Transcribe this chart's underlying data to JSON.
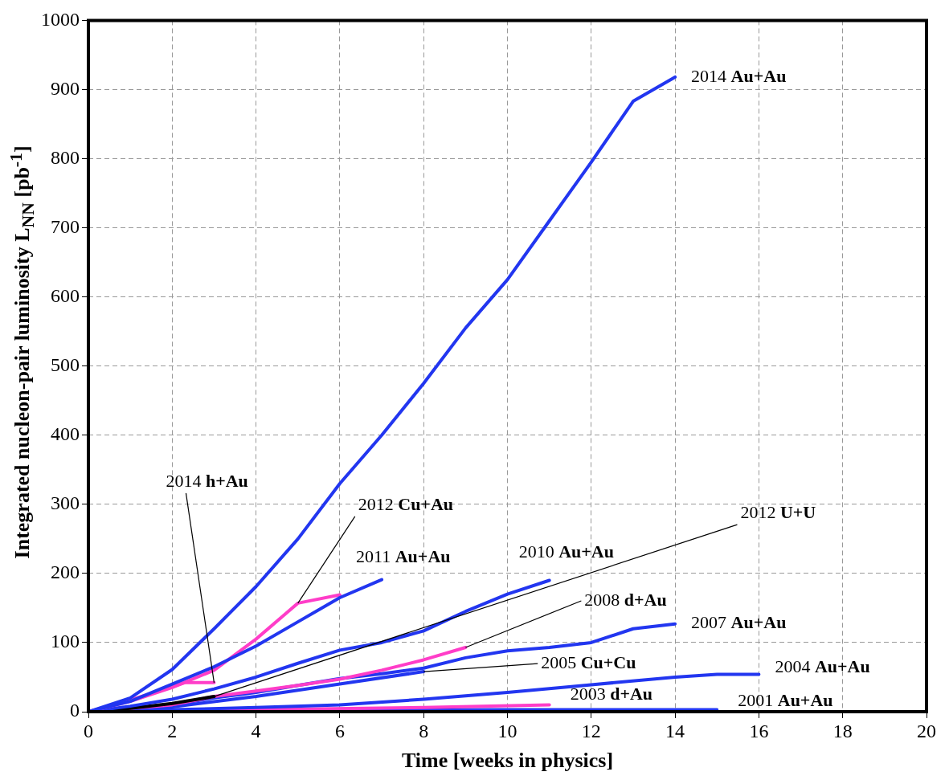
{
  "chart_data": {
    "type": "line",
    "xlabel": "Time [weeks in physics]",
    "ylabel": "Integrated nucleon-pair luminosity L$_{NN}$ [pb$^{-1}$]",
    "xlim": [
      0,
      20
    ],
    "xticks": [
      0,
      2,
      4,
      6,
      8,
      10,
      12,
      14,
      16,
      18,
      20
    ],
    "ylim": [
      0,
      1000
    ],
    "yticks": [
      0,
      100,
      200,
      300,
      400,
      500,
      600,
      700,
      800,
      900,
      1000
    ],
    "grid": true,
    "legend": false,
    "marker": "none",
    "line_style": "solid",
    "series": [
      {
        "color": "#2236f0",
        "x": [
          0,
          1,
          2,
          3,
          4,
          5,
          6,
          7,
          8,
          9,
          10,
          11,
          12,
          13,
          14
        ],
        "values": [
          0,
          20,
          61,
          120,
          181,
          250,
          330,
          400,
          475,
          555,
          625,
          710,
          795,
          883,
          918
        ]
      },
      {
        "color": "#2236f0",
        "x": [
          0,
          1,
          2,
          3,
          4,
          5,
          6,
          7
        ],
        "values": [
          0,
          15,
          40,
          65,
          95,
          130,
          165,
          191
        ]
      },
      {
        "color": "#ff3dc8",
        "x": [
          0,
          1,
          2,
          3,
          4,
          5,
          6
        ],
        "values": [
          0,
          15,
          35,
          60,
          105,
          157,
          169
        ]
      },
      {
        "color": "#ff3dc8",
        "x": [
          0,
          1,
          2,
          2.3,
          3
        ],
        "values": [
          0,
          17,
          36,
          42,
          42
        ]
      },
      {
        "color": "#2236f0",
        "x": [
          0,
          1,
          2,
          3,
          4,
          5,
          6,
          7,
          8,
          9,
          10,
          11
        ],
        "values": [
          0,
          8,
          18,
          33,
          50,
          70,
          89,
          100,
          117,
          145,
          170,
          190
        ]
      },
      {
        "color": "#000000",
        "x": [
          0,
          1,
          2,
          3
        ],
        "values": [
          0,
          5,
          12,
          22
        ]
      },
      {
        "color": "#ff3dc8",
        "x": [
          0,
          2,
          3,
          4,
          5,
          6,
          7,
          8,
          9
        ],
        "values": [
          0,
          10,
          22,
          30,
          38,
          47,
          60,
          75,
          93
        ]
      },
      {
        "color": "#2236f0",
        "x": [
          0,
          2,
          3,
          4,
          5,
          6,
          7,
          8,
          9,
          10,
          11,
          12,
          13,
          14
        ],
        "values": [
          0,
          10,
          20,
          28,
          38,
          48,
          55,
          63,
          78,
          88,
          93,
          100,
          120,
          127
        ]
      },
      {
        "color": "#2236f0",
        "x": [
          0,
          2,
          4,
          6,
          8
        ],
        "values": [
          0,
          7,
          22,
          40,
          58
        ]
      },
      {
        "color": "#2236f0",
        "x": [
          0,
          2,
          4,
          6,
          8,
          10,
          12,
          14,
          15,
          16
        ],
        "values": [
          0,
          3,
          6,
          10,
          18,
          28,
          39,
          50,
          54,
          54
        ]
      },
      {
        "color": "#ff3dc8",
        "x": [
          0,
          4,
          8,
          11
        ],
        "values": [
          0,
          3,
          6,
          10
        ]
      },
      {
        "color": "#2236f0",
        "x": [
          0,
          5,
          10,
          15
        ],
        "values": [
          0,
          2,
          3,
          3
        ]
      }
    ],
    "annotations": [
      {
        "text": "2014 Au+Au",
        "x": 14,
        "y": 918
      },
      {
        "text": "2014 h+Au",
        "x": 3,
        "y": 42
      },
      {
        "text": "2012 Cu+Au",
        "x": 5,
        "y": 157
      },
      {
        "text": "2011 Au+Au",
        "x": 7,
        "y": 191
      },
      {
        "text": "2010 Au+Au",
        "x": 11,
        "y": 190
      },
      {
        "text": "2012 U+U",
        "x": 3,
        "y": 22
      },
      {
        "text": "2008 d+Au",
        "x": 9,
        "y": 93
      },
      {
        "text": "2007 Au+Au",
        "x": 14,
        "y": 127
      },
      {
        "text": "2005 Cu+Cu",
        "x": 8,
        "y": 58
      },
      {
        "text": "2004 Au+Au",
        "x": 16,
        "y": 54
      },
      {
        "text": "2003 d+Au",
        "x": 11,
        "y": 10
      },
      {
        "text": "2001 Au+Au",
        "x": 15,
        "y": 3
      }
    ]
  }
}
